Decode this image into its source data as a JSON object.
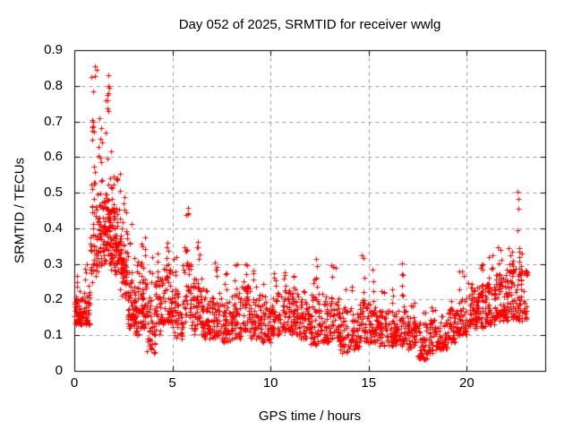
{
  "chart_data": {
    "type": "scatter",
    "title": "Day 052 of 2025, SRMTID for receiver wwlg",
    "xlabel": "GPS time / hours",
    "ylabel": "SRMTID / TECUs",
    "xlim": [
      0,
      24
    ],
    "ylim": [
      0,
      0.9
    ],
    "x_ticks": [
      {
        "value": 0,
        "label": "0"
      },
      {
        "value": 5,
        "label": "5"
      },
      {
        "value": 10,
        "label": "10"
      },
      {
        "value": 15,
        "label": "15"
      },
      {
        "value": 20,
        "label": "20"
      }
    ],
    "y_ticks": [
      {
        "value": 0,
        "label": "0"
      },
      {
        "value": 0.1,
        "label": "0.1"
      },
      {
        "value": 0.2,
        "label": "0.2"
      },
      {
        "value": 0.3,
        "label": "0.3"
      },
      {
        "value": 0.4,
        "label": "0.4"
      },
      {
        "value": 0.5,
        "label": "0.5"
      },
      {
        "value": 0.6,
        "label": "0.6"
      },
      {
        "value": 0.7,
        "label": "0.7"
      },
      {
        "value": 0.8,
        "label": "0.8"
      },
      {
        "value": 0.9,
        "label": "0.9"
      }
    ],
    "grid": {
      "visible": true,
      "style": "dashed",
      "color": "#999999",
      "dash": [
        4,
        4
      ]
    },
    "axis_color": "#000000",
    "background_color": "#ffffff",
    "marker": {
      "shape": "plus",
      "color": "#ff0000",
      "size": 7
    },
    "series_name": "SRMTID for receiver wwlg",
    "data_x_range": [
      0,
      23.1
    ],
    "envelope_bins": {
      "columns": [
        "x_start",
        "x_end",
        "count",
        "band_low",
        "band_high",
        "tail_max",
        "tail_count"
      ],
      "rows": [
        [
          0.0,
          0.5,
          60,
          0.13,
          0.21,
          0.27,
          4
        ],
        [
          0.5,
          0.8,
          38,
          0.13,
          0.23,
          0.31,
          5
        ],
        [
          0.8,
          1.2,
          46,
          0.2,
          0.5,
          0.86,
          18
        ],
        [
          1.2,
          1.5,
          40,
          0.26,
          0.52,
          0.72,
          10
        ],
        [
          1.5,
          1.8,
          52,
          0.3,
          0.5,
          0.84,
          12
        ],
        [
          1.8,
          2.1,
          50,
          0.28,
          0.46,
          0.62,
          8
        ],
        [
          2.1,
          2.4,
          45,
          0.22,
          0.44,
          0.6,
          8
        ],
        [
          2.4,
          2.7,
          44,
          0.18,
          0.4,
          0.55,
          6
        ],
        [
          2.7,
          3.0,
          42,
          0.12,
          0.28,
          0.42,
          5
        ],
        [
          3.0,
          3.3,
          40,
          0.1,
          0.24,
          0.33,
          4
        ],
        [
          3.3,
          3.7,
          48,
          0.12,
          0.3,
          0.42,
          6
        ],
        [
          3.7,
          4.1,
          42,
          0.05,
          0.22,
          0.32,
          4
        ],
        [
          4.1,
          4.5,
          44,
          0.1,
          0.26,
          0.34,
          4
        ],
        [
          4.5,
          5.0,
          52,
          0.13,
          0.3,
          0.36,
          5
        ],
        [
          5.0,
          5.5,
          45,
          0.09,
          0.24,
          0.33,
          4
        ],
        [
          5.5,
          6.1,
          50,
          0.12,
          0.3,
          0.47,
          9
        ],
        [
          6.1,
          6.5,
          42,
          0.1,
          0.26,
          0.38,
          5
        ],
        [
          6.5,
          7.0,
          45,
          0.09,
          0.2,
          0.27,
          4
        ],
        [
          7.0,
          7.5,
          46,
          0.09,
          0.22,
          0.32,
          5
        ],
        [
          7.5,
          8.0,
          45,
          0.08,
          0.2,
          0.28,
          4
        ],
        [
          8.0,
          8.5,
          46,
          0.09,
          0.22,
          0.3,
          4
        ],
        [
          8.5,
          9.0,
          50,
          0.11,
          0.24,
          0.3,
          4
        ],
        [
          9.0,
          9.5,
          45,
          0.09,
          0.22,
          0.3,
          4
        ],
        [
          9.5,
          10.0,
          44,
          0.08,
          0.2,
          0.26,
          3
        ],
        [
          10.0,
          10.5,
          45,
          0.1,
          0.22,
          0.28,
          4
        ],
        [
          10.5,
          11.0,
          48,
          0.11,
          0.23,
          0.28,
          4
        ],
        [
          11.0,
          11.5,
          48,
          0.1,
          0.22,
          0.27,
          4
        ],
        [
          11.5,
          12.0,
          45,
          0.09,
          0.2,
          0.25,
          3
        ],
        [
          12.0,
          12.5,
          48,
          0.07,
          0.22,
          0.32,
          5
        ],
        [
          12.5,
          13.0,
          44,
          0.08,
          0.19,
          0.25,
          3
        ],
        [
          13.0,
          13.5,
          45,
          0.09,
          0.21,
          0.3,
          4
        ],
        [
          13.5,
          14.0,
          44,
          0.05,
          0.17,
          0.24,
          3
        ],
        [
          14.0,
          14.5,
          44,
          0.06,
          0.17,
          0.27,
          3
        ],
        [
          14.5,
          15.0,
          45,
          0.08,
          0.2,
          0.33,
          4
        ],
        [
          15.0,
          15.5,
          45,
          0.08,
          0.19,
          0.29,
          4
        ],
        [
          15.5,
          16.0,
          44,
          0.07,
          0.17,
          0.24,
          3
        ],
        [
          16.0,
          16.5,
          44,
          0.07,
          0.17,
          0.24,
          3
        ],
        [
          16.5,
          17.0,
          44,
          0.07,
          0.17,
          0.24,
          3
        ],
        [
          17.0,
          17.5,
          44,
          0.06,
          0.15,
          0.21,
          3
        ],
        [
          17.5,
          18.0,
          45,
          0.03,
          0.14,
          0.22,
          3
        ],
        [
          18.0,
          18.5,
          44,
          0.05,
          0.15,
          0.21,
          3
        ],
        [
          18.5,
          19.0,
          44,
          0.06,
          0.14,
          0.19,
          2
        ],
        [
          19.0,
          19.5,
          44,
          0.08,
          0.17,
          0.24,
          3
        ],
        [
          19.5,
          20.0,
          45,
          0.1,
          0.21,
          0.31,
          4
        ],
        [
          20.0,
          20.5,
          46,
          0.12,
          0.23,
          0.29,
          4
        ],
        [
          20.5,
          21.0,
          50,
          0.12,
          0.24,
          0.31,
          5
        ],
        [
          21.0,
          21.5,
          50,
          0.13,
          0.25,
          0.34,
          5
        ],
        [
          21.5,
          22.0,
          52,
          0.14,
          0.27,
          0.35,
          5
        ],
        [
          22.0,
          22.5,
          55,
          0.14,
          0.29,
          0.37,
          6
        ],
        [
          22.5,
          23.1,
          55,
          0.14,
          0.29,
          0.34,
          5
        ]
      ]
    },
    "outlier_points": [
      [
        22.6,
        0.503
      ],
      [
        22.61,
        0.483
      ],
      [
        22.62,
        0.455
      ],
      [
        22.6,
        0.395
      ],
      [
        22.67,
        0.345
      ],
      [
        22.12,
        0.345
      ],
      [
        16.68,
        0.302
      ],
      [
        16.7,
        0.272
      ],
      [
        16.73,
        0.268
      ],
      [
        16.69,
        0.24
      ],
      [
        12.32,
        0.315
      ],
      [
        12.35,
        0.295
      ],
      [
        1.05,
        0.855
      ],
      [
        1.12,
        0.845
      ]
    ]
  }
}
